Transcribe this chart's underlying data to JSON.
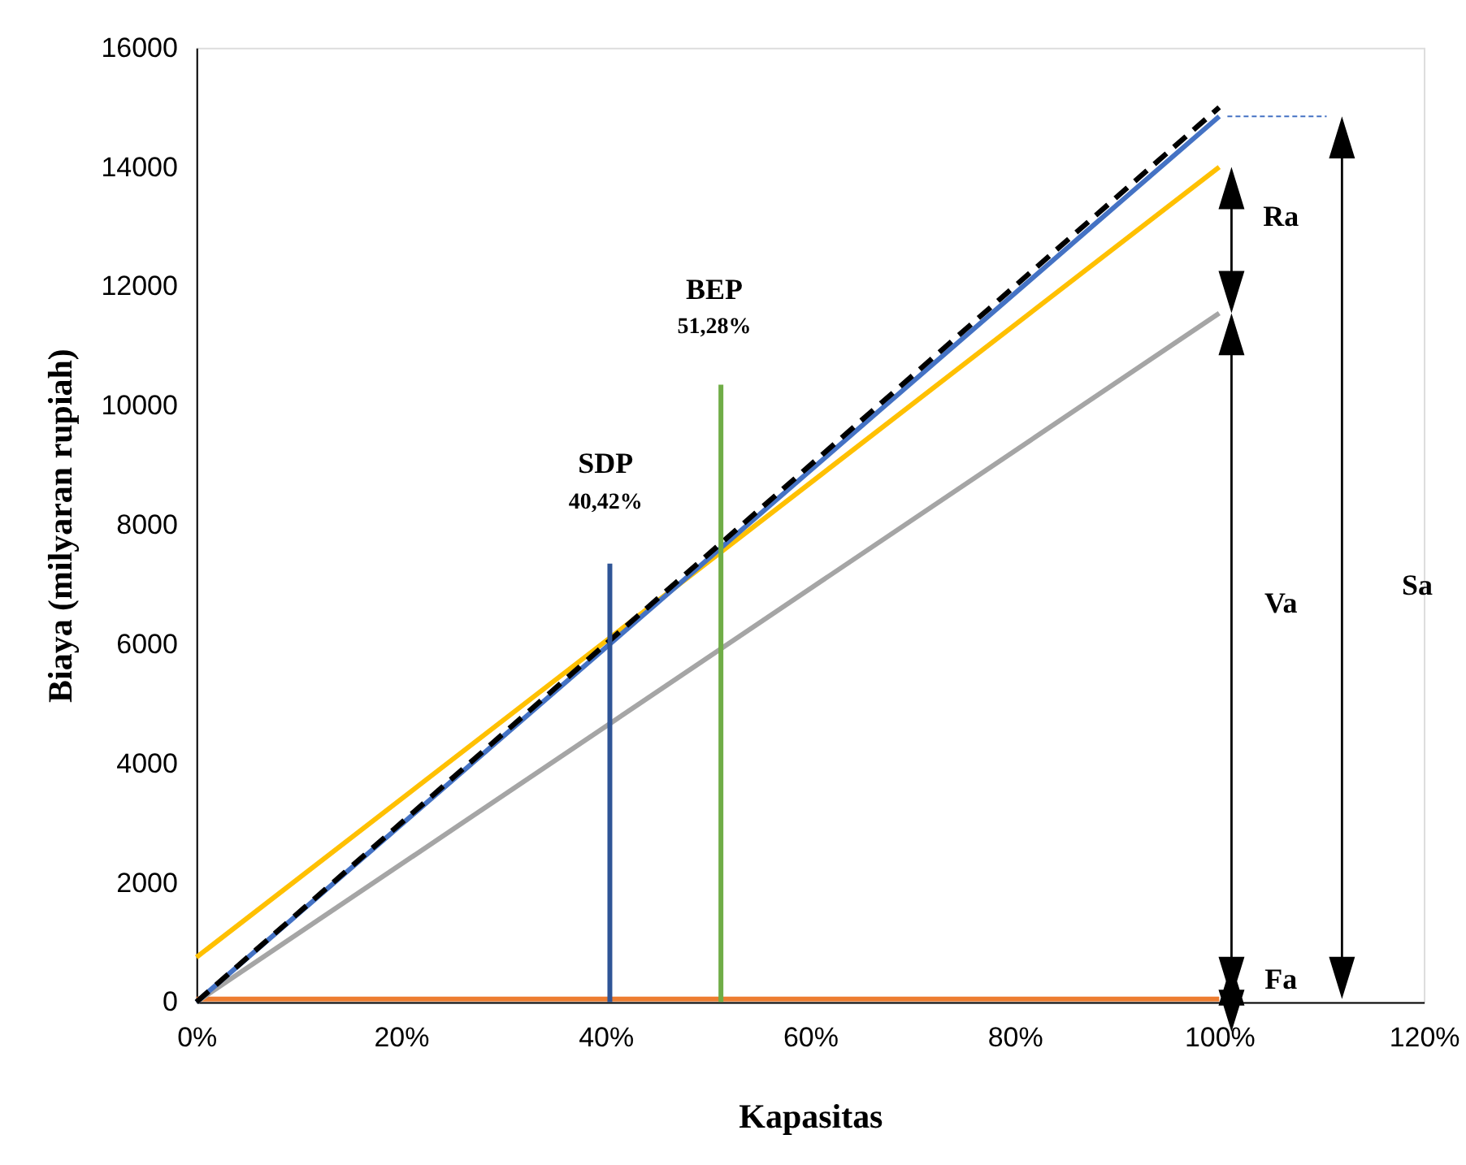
{
  "chart_data": {
    "type": "line",
    "xlabel": "Kapasitas",
    "ylabel": "Biaya (milyaran rupiah)",
    "xlim": [
      0,
      120
    ],
    "ylim": [
      0,
      16000
    ],
    "xticks": [
      {
        "value": 0,
        "label": "0%"
      },
      {
        "value": 20,
        "label": "20%"
      },
      {
        "value": 40,
        "label": "40%"
      },
      {
        "value": 60,
        "label": "60%"
      },
      {
        "value": 80,
        "label": "80%"
      },
      {
        "value": 100,
        "label": "100%"
      },
      {
        "value": 120,
        "label": "120%"
      }
    ],
    "yticks": [
      0,
      2000,
      4000,
      6000,
      8000,
      10000,
      12000,
      14000,
      16000
    ],
    "grid": false,
    "marker": "none",
    "series": [
      {
        "color": "#ed7d31",
        "x": [
          0,
          100
        ],
        "values": [
          50,
          50
        ]
      },
      {
        "color": "#a5a5a5",
        "x": [
          0,
          100
        ],
        "values": [
          0,
          11550
        ]
      },
      {
        "color": "#ffc000",
        "x": [
          0,
          100
        ],
        "values": [
          750,
          14000
        ]
      },
      {
        "color": "#4472c4",
        "x": [
          0,
          100
        ],
        "values": [
          0,
          14850
        ]
      },
      {
        "color": "#000000",
        "x": [
          0,
          100
        ],
        "values": [
          0,
          15000
        ],
        "line_style": "dashed"
      },
      {
        "color": "#2f5597",
        "x": [
          40.42,
          40.42
        ],
        "values": [
          0,
          7350
        ]
      },
      {
        "color": "#70ad47",
        "x": [
          51.28,
          51.28
        ],
        "values": [
          0,
          10350
        ]
      }
    ],
    "annotations": [
      "SDP",
      "40,42%",
      "BEP",
      "51,28%",
      "Ra",
      "Va",
      "Fa",
      "Sa"
    ]
  }
}
